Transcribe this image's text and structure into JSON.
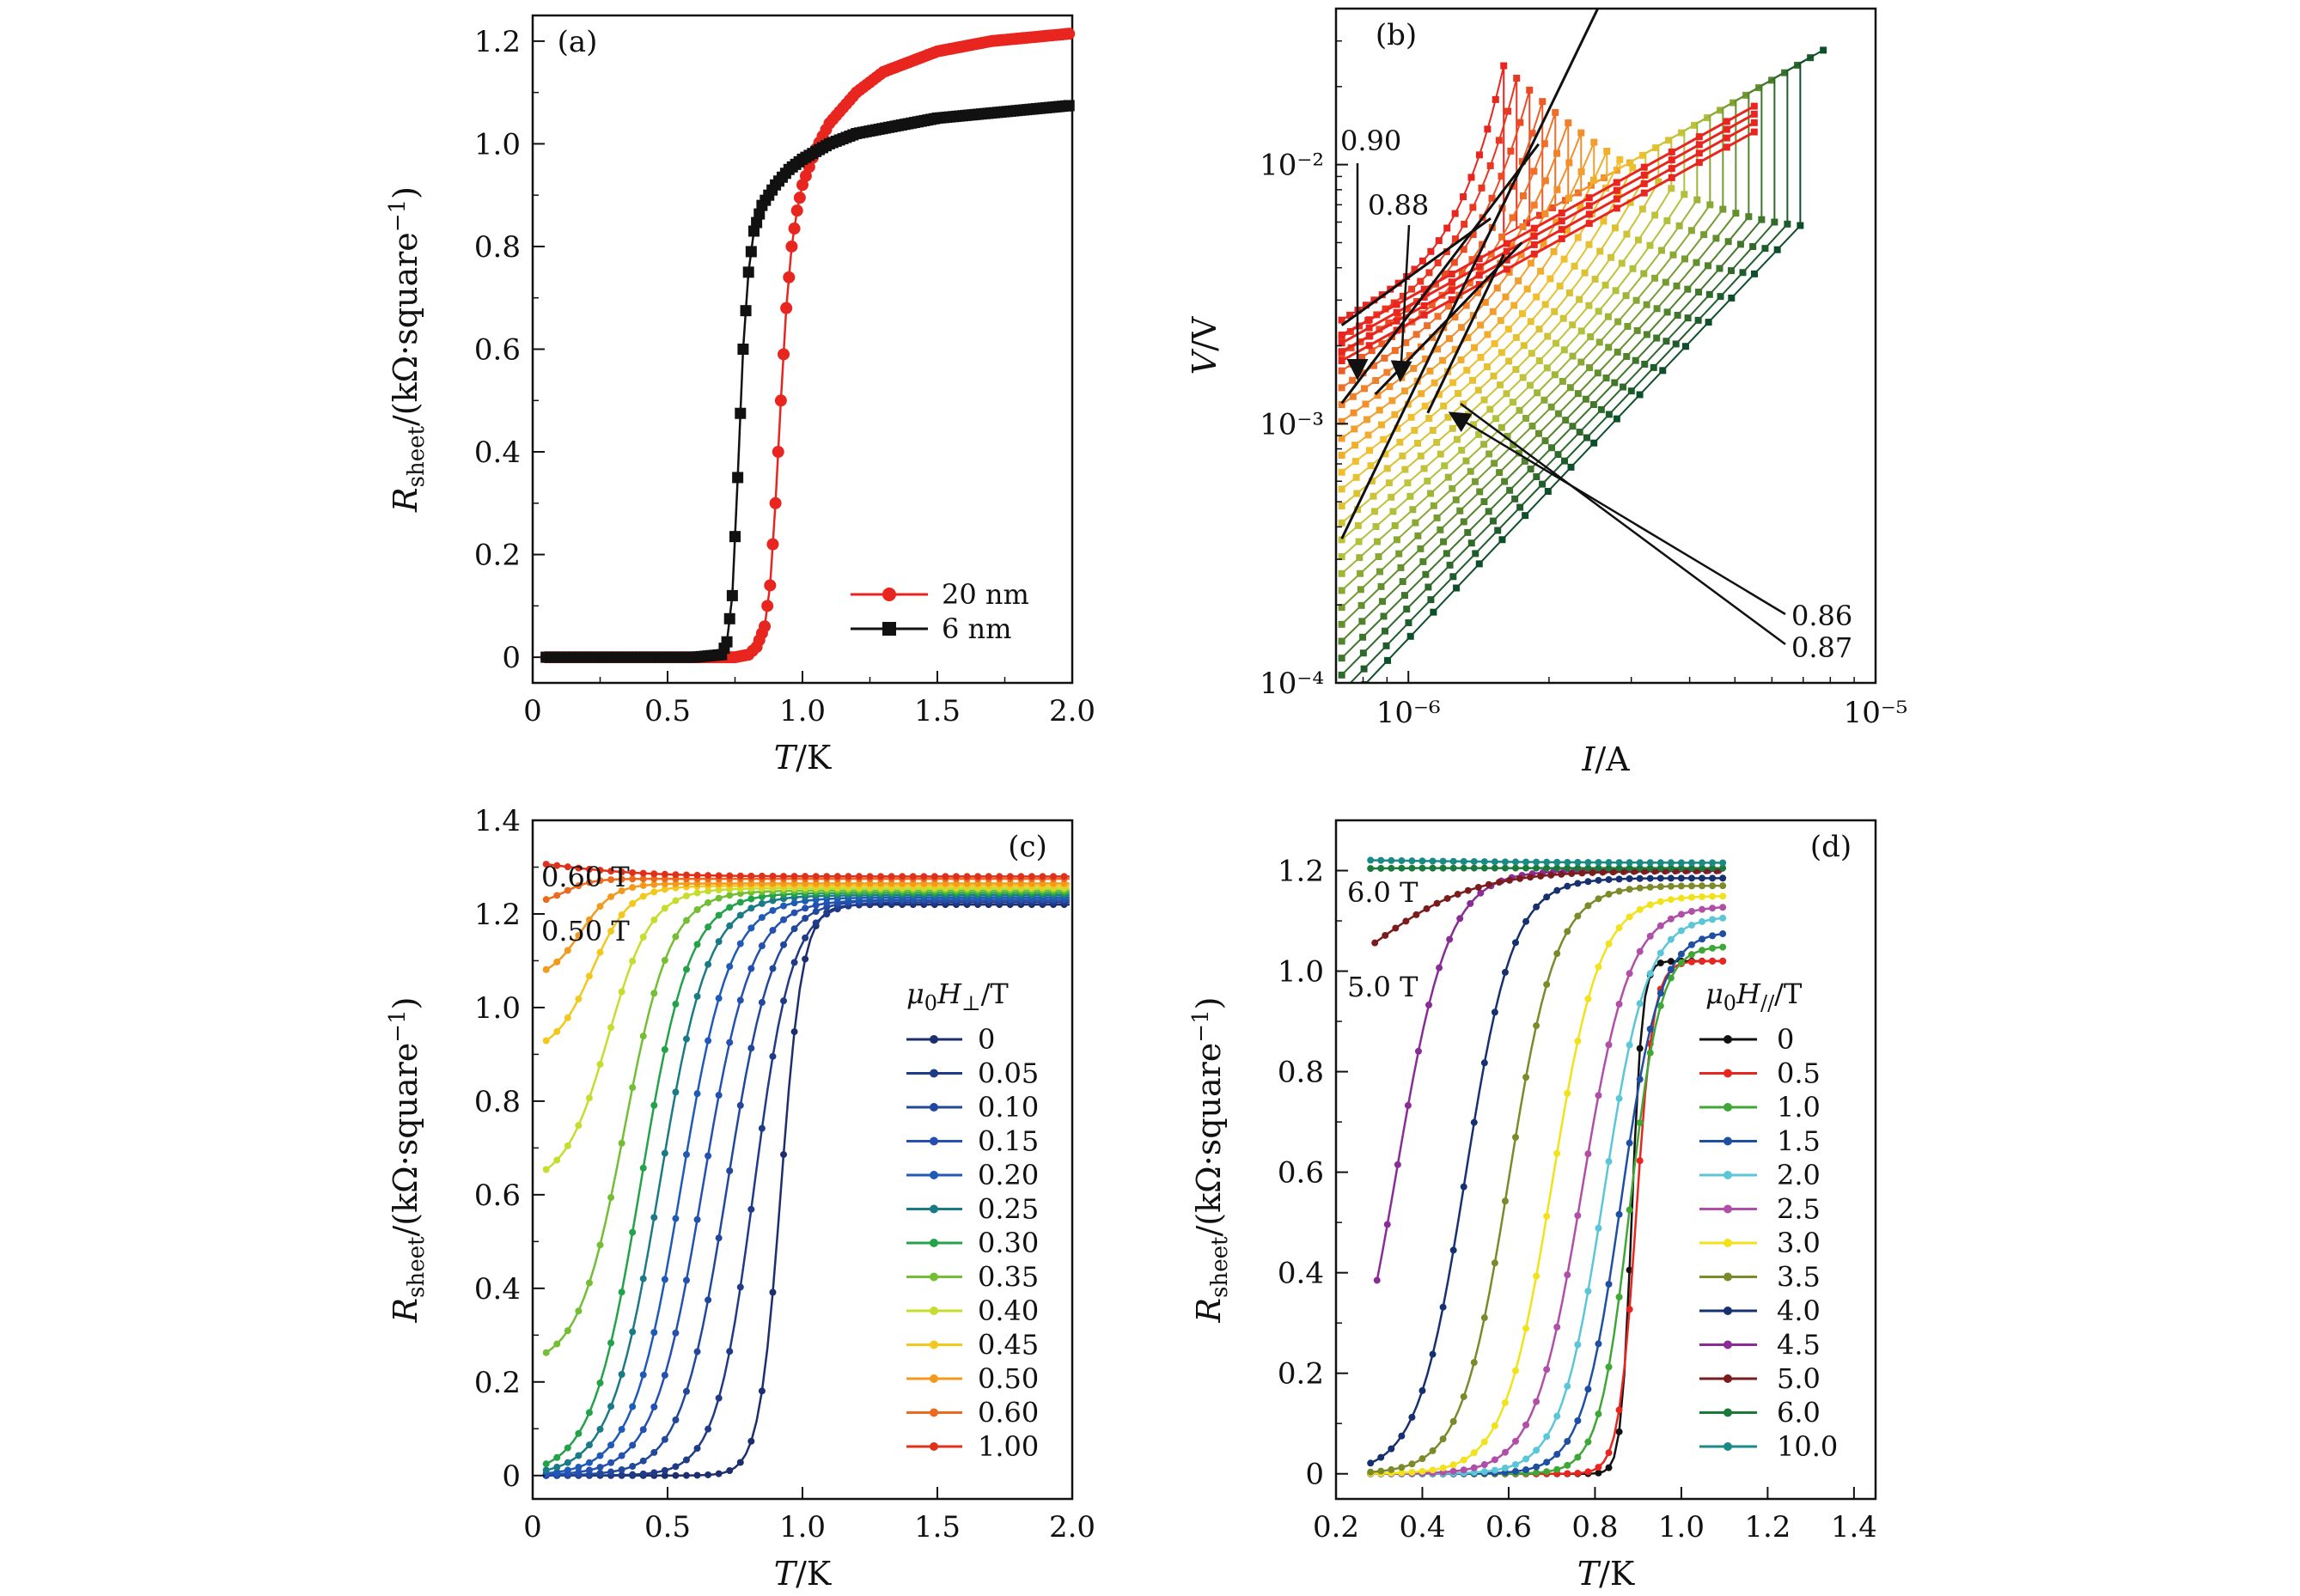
{
  "chart_data": [
    {
      "panel": "(a)",
      "type": "line",
      "xlabel": "T/K",
      "ylabel": "R_sheet/(kΩ·square⁻¹)",
      "xlim": [
        0,
        2.0
      ],
      "ylim": [
        -0.05,
        1.25
      ],
      "xticks": [
        "0",
        "0.5",
        "1.0",
        "1.5",
        "2.0"
      ],
      "yticks": [
        "0",
        "0.2",
        "0.4",
        "0.6",
        "0.8",
        "1.0",
        "1.2"
      ],
      "legend_position": "bottom-right",
      "series": [
        {
          "name": "20 nm",
          "color": "#e8251f",
          "marker": "circle",
          "x": [
            0.05,
            0.3,
            0.6,
            0.75,
            0.8,
            0.83,
            0.86,
            0.88,
            0.9,
            0.92,
            0.94,
            0.96,
            0.98,
            1.0,
            1.05,
            1.1,
            1.2,
            1.3,
            1.5,
            1.7,
            2.0
          ],
          "y": [
            0,
            0,
            0,
            0,
            0.005,
            0.02,
            0.06,
            0.14,
            0.3,
            0.5,
            0.68,
            0.8,
            0.87,
            0.92,
            0.99,
            1.04,
            1.1,
            1.14,
            1.18,
            1.2,
            1.215
          ]
        },
        {
          "name": "6 nm",
          "color": "#111111",
          "marker": "square",
          "x": [
            0.05,
            0.3,
            0.6,
            0.7,
            0.72,
            0.74,
            0.76,
            0.78,
            0.8,
            0.82,
            0.85,
            0.9,
            0.95,
            1.0,
            1.1,
            1.2,
            1.5,
            1.7,
            2.0
          ],
          "y": [
            0,
            0,
            0,
            0.005,
            0.03,
            0.12,
            0.35,
            0.6,
            0.75,
            0.83,
            0.88,
            0.92,
            0.95,
            0.97,
            1.0,
            1.02,
            1.05,
            1.06,
            1.075
          ]
        }
      ]
    },
    {
      "panel": "(b)",
      "type": "line",
      "xlabel": "I/A",
      "ylabel": "V/V",
      "xscale": "log",
      "yscale": "log",
      "xlim": [
        7e-07,
        1e-05
      ],
      "ylim": [
        0.0001,
        0.04
      ],
      "xticks": [
        "10⁻⁶",
        "10⁻⁵"
      ],
      "yticks": [
        "10⁻⁴",
        "10⁻³",
        "10⁻²"
      ],
      "curve_count": 24,
      "color_gradient": [
        "#e8251f",
        "#f07a2a",
        "#f2c12e",
        "#b5c43c",
        "#5b8a2c",
        "#0e4f2b"
      ],
      "annotations": [
        "0.90",
        "0.88",
        "0.86",
        "0.87"
      ]
    },
    {
      "panel": "(c)",
      "type": "line",
      "xlabel": "T/K",
      "ylabel": "R_sheet/(kΩ·square⁻¹)",
      "xlim": [
        0,
        2.0
      ],
      "ylim": [
        -0.05,
        1.4
      ],
      "xticks": [
        "0",
        "0.5",
        "1.0",
        "1.5",
        "2.0"
      ],
      "yticks": [
        "0",
        "0.2",
        "0.4",
        "0.6",
        "0.8",
        "1.0",
        "1.2",
        "1.4"
      ],
      "legend_title": "μ0H⊥/T",
      "legend_position": "right",
      "annotations": [
        "0.60 T",
        "0.50 T"
      ],
      "series": [
        {
          "name": "0",
          "color": "#1c2e6e",
          "Tc": 0.92,
          "width": 0.04,
          "Rn": 1.22,
          "R0": 0
        },
        {
          "name": "0.05",
          "color": "#1f3a86",
          "Tc": 0.82,
          "width": 0.07,
          "Rn": 1.225,
          "R0": 0
        },
        {
          "name": "0.10",
          "color": "#22489c",
          "Tc": 0.72,
          "width": 0.085,
          "Rn": 1.23,
          "R0": 0
        },
        {
          "name": "0.15",
          "color": "#2450b0",
          "Tc": 0.63,
          "width": 0.09,
          "Rn": 1.23,
          "R0": 0
        },
        {
          "name": "0.20",
          "color": "#1f5ab8",
          "Tc": 0.55,
          "width": 0.09,
          "Rn": 1.235,
          "R0": 0
        },
        {
          "name": "0.25",
          "color": "#1a7a86",
          "Tc": 0.47,
          "width": 0.09,
          "Rn": 1.24,
          "R0": 0
        },
        {
          "name": "0.30",
          "color": "#23a24a",
          "Tc": 0.4,
          "width": 0.09,
          "Rn": 1.245,
          "R0": 0
        },
        {
          "name": "0.35",
          "color": "#74be34",
          "Tc": 0.34,
          "width": 0.085,
          "Rn": 1.25,
          "R0": 0.23
        },
        {
          "name": "0.40",
          "color": "#c6dd2e",
          "Tc": 0.28,
          "width": 0.08,
          "Rn": 1.255,
          "R0": 0.62
        },
        {
          "name": "0.45",
          "color": "#f3c81c",
          "Tc": 0.22,
          "width": 0.07,
          "Rn": 1.26,
          "R0": 0.9
        },
        {
          "name": "0.50",
          "color": "#f39a1c",
          "Tc": 0.18,
          "width": 0.06,
          "Rn": 1.265,
          "R0": 1.06
        },
        {
          "name": "0.60",
          "color": "#ec6a1e",
          "Tc": 0.12,
          "width": 0.05,
          "Rn": 1.275,
          "R0": 1.22
        },
        {
          "name": "1.00",
          "color": "#e0301c",
          "Tc": 0.0,
          "width": 0.2,
          "Rn": 1.28,
          "R0": 1.34
        }
      ]
    },
    {
      "panel": "(d)",
      "type": "line",
      "xlabel": "T/K",
      "ylabel": "R_sheet/(kΩ·square⁻¹)",
      "xlim": [
        0.2,
        1.45
      ],
      "ylim": [
        -0.05,
        1.3
      ],
      "xticks": [
        "0.2",
        "0.4",
        "0.6",
        "0.8",
        "1.0",
        "1.2",
        "1.4"
      ],
      "yticks": [
        "0",
        "0.2",
        "0.4",
        "0.6",
        "0.8",
        "1.0",
        "1.2"
      ],
      "legend_title": "μ0H//T",
      "legend_position": "right",
      "annotations": [
        "6.0 T",
        "5.0 T"
      ],
      "series": [
        {
          "name": "0",
          "color": "#111111",
          "Tc": 0.885,
          "width": 0.012,
          "Rn": 1.02,
          "R0": 0
        },
        {
          "name": "0.5",
          "color": "#e8251f",
          "Tc": 0.895,
          "width": 0.02,
          "Rn": 1.02,
          "R0": 0
        },
        {
          "name": "1.0",
          "color": "#3fa735",
          "Tc": 0.88,
          "width": 0.035,
          "Rn": 1.05,
          "R0": 0
        },
        {
          "name": "1.5",
          "color": "#1f4fa3",
          "Tc": 0.86,
          "width": 0.045,
          "Rn": 1.08,
          "R0": 0
        },
        {
          "name": "2.0",
          "color": "#5bc6d8",
          "Tc": 0.82,
          "width": 0.05,
          "Rn": 1.11,
          "R0": 0
        },
        {
          "name": "2.5",
          "color": "#b04ea8",
          "Tc": 0.77,
          "width": 0.055,
          "Rn": 1.13,
          "R0": 0
        },
        {
          "name": "3.0",
          "color": "#f2e21c",
          "Tc": 0.7,
          "width": 0.055,
          "Rn": 1.15,
          "R0": 0
        },
        {
          "name": "3.5",
          "color": "#7c8a2a",
          "Tc": 0.6,
          "width": 0.055,
          "Rn": 1.17,
          "R0": 0
        },
        {
          "name": "4.0",
          "color": "#17306f",
          "Tc": 0.5,
          "width": 0.055,
          "Rn": 1.185,
          "R0": 0
        },
        {
          "name": "4.5",
          "color": "#8a2c96",
          "Tc": 0.34,
          "width": 0.06,
          "Rn": 1.2,
          "R0": 0
        },
        {
          "name": "5.0",
          "color": "#7a1c1c",
          "Tc": 0.28,
          "width": 0.12,
          "Rn": 1.2,
          "R0": 0.9
        },
        {
          "name": "6.0",
          "color": "#1b7a3a",
          "Tc": 0.2,
          "width": 0.05,
          "Rn": 1.205,
          "R0": 1.2
        },
        {
          "name": "10.0",
          "color": "#1a8a86",
          "Tc": 0.0,
          "width": 0.3,
          "Rn": 1.215,
          "R0": 1.235
        }
      ]
    }
  ]
}
